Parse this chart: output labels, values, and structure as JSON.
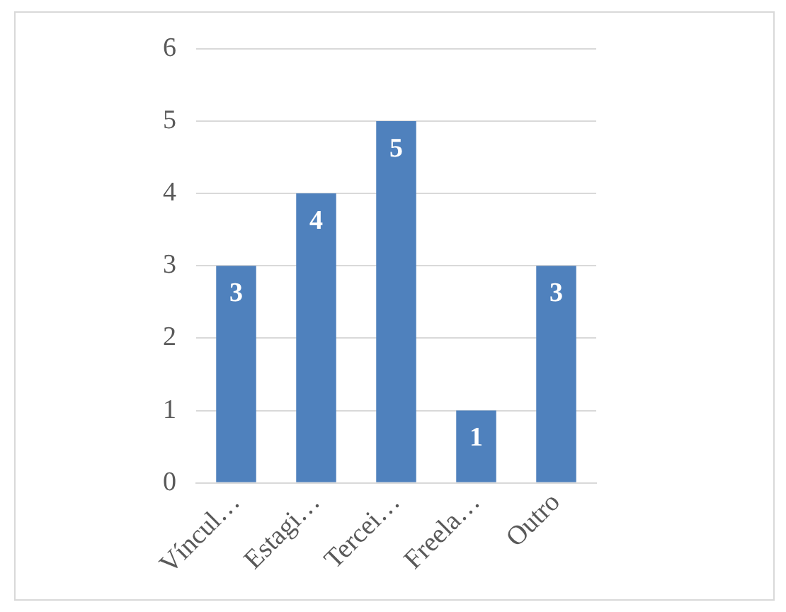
{
  "chart_data": {
    "type": "bar",
    "categories": [
      "Víncul…",
      "Estagi…",
      "Tercei…",
      "Freela…",
      "Outro"
    ],
    "values": [
      3,
      4,
      5,
      1,
      3
    ],
    "color": "#4f81bd",
    "ylim": [
      0,
      6
    ],
    "yticks": [
      0,
      1,
      2,
      3,
      4,
      5,
      6
    ],
    "grid": "y",
    "data_labels": true,
    "legend": false
  }
}
